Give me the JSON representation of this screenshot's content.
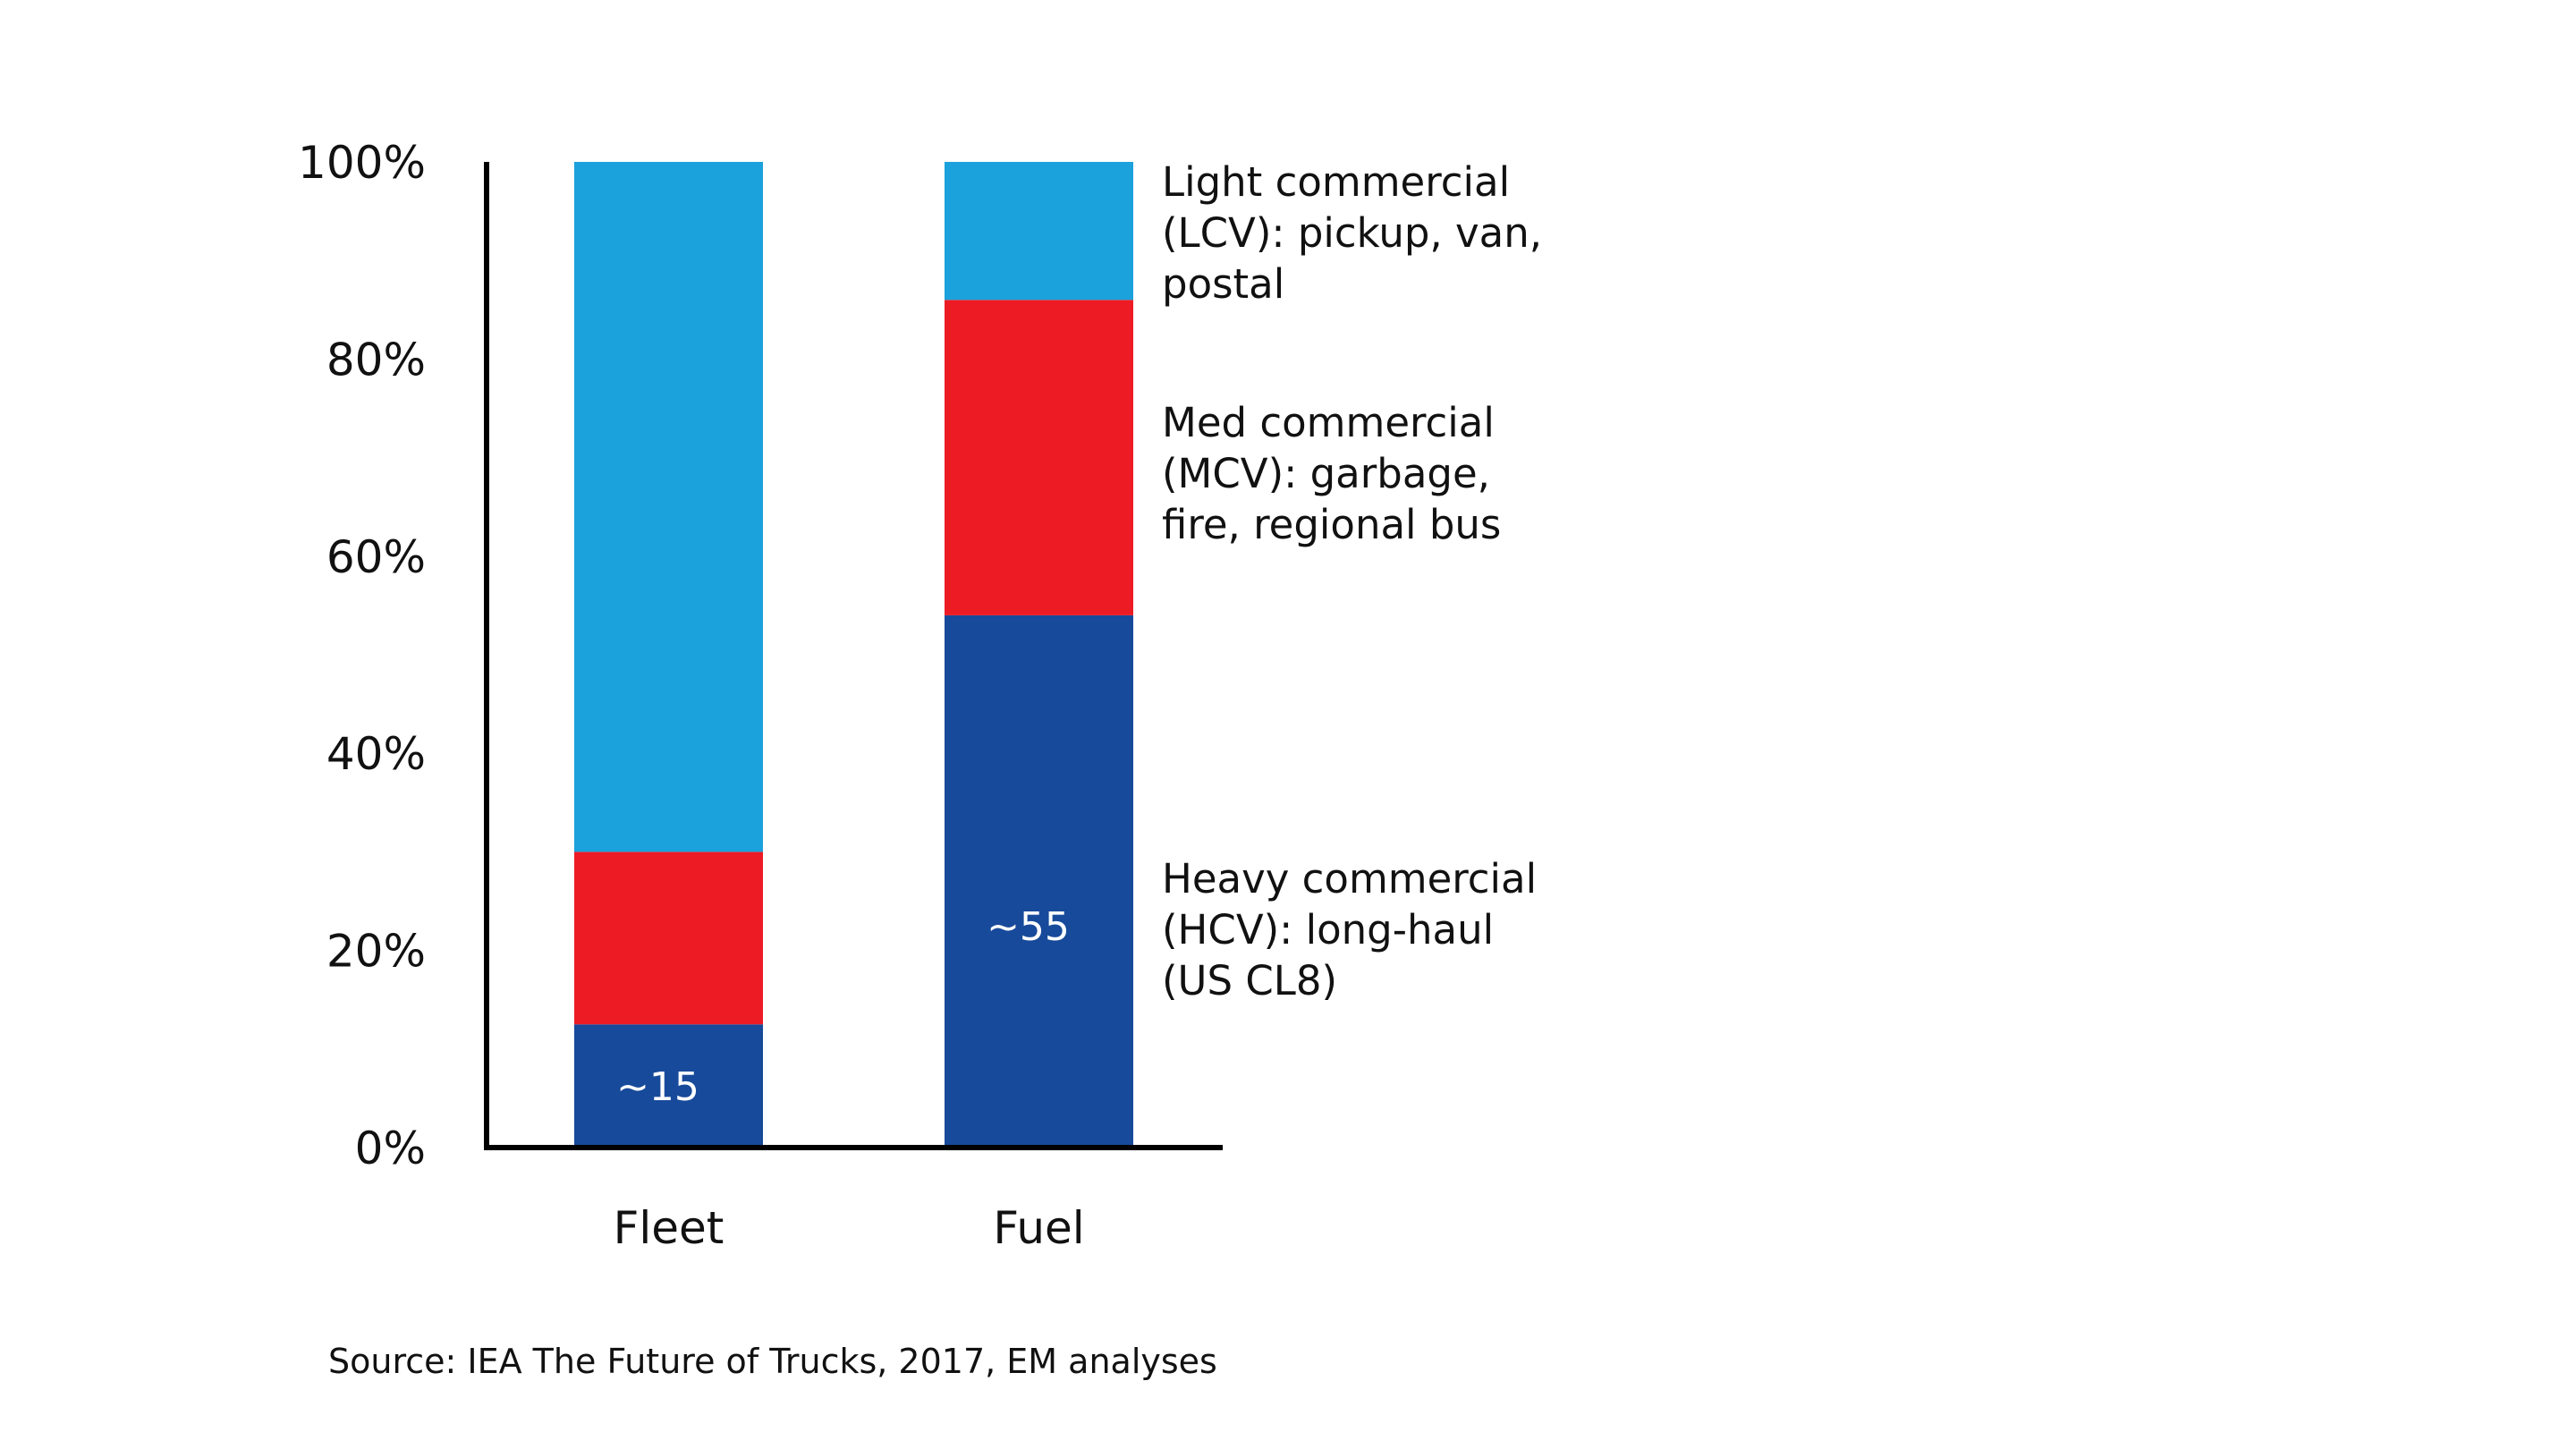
{
  "chart_data": {
    "type": "bar",
    "stacked": true,
    "title": "",
    "xlabel": "",
    "ylabel": "",
    "ylim": [
      0,
      100
    ],
    "yticks": [
      "0%",
      "20%",
      "40%",
      "60%",
      "80%",
      "100%"
    ],
    "categories": [
      "Fleet",
      "Fuel"
    ],
    "series": [
      {
        "name": "Heavy commercial (HCV): long-haul (US CL8)",
        "key": "heavy",
        "color": "#174A9A",
        "values": [
          12.5,
          54
        ],
        "labels": [
          "~15",
          "~55"
        ]
      },
      {
        "name": "Med commercial (MCV): garbage, fire, regional bus",
        "key": "med",
        "color": "#ED1C24",
        "values": [
          17.5,
          32
        ]
      },
      {
        "name": "Light commercial (LCV): pickup, van, postal",
        "key": "light",
        "color": "#1BA1DB",
        "values": [
          70,
          14
        ]
      }
    ],
    "legend": {
      "placement": "right",
      "light": [
        "Light commercial",
        "(LCV): pickup, van,",
        "postal"
      ],
      "med": [
        "Med commercial",
        "(MCV): garbage,",
        "fire, regional bus"
      ],
      "heavy": [
        "Heavy commercial",
        "(HCV): long-haul",
        "(US CL8)"
      ]
    },
    "source": "Source: IEA The Future of Trucks, 2017, EM analyses"
  }
}
